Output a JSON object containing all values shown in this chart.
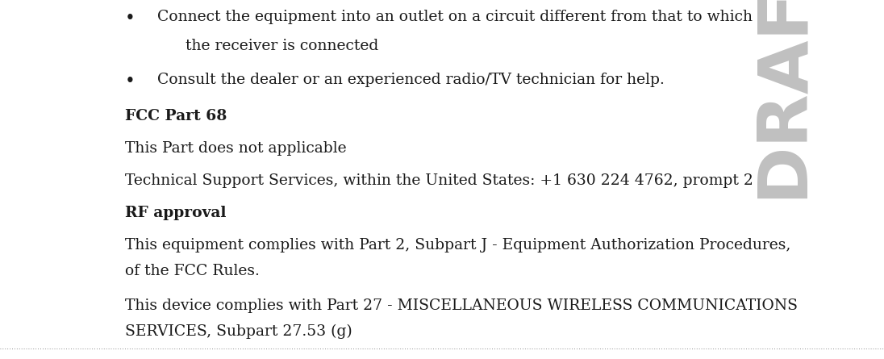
{
  "bg_color": "#ffffff",
  "text_color": "#1a1a1a",
  "draft_color": "#c0c0c0",
  "bullet_char": "•",
  "bullet1_line1": "Connect the equipment into an outlet on a circuit different from that to which",
  "bullet1_line2": "the receiver is connected",
  "bullet2": "Consult the dealer or an experienced radio/TV technician for help.",
  "heading1": "FCC Part 68",
  "para1": "This Part does not applicable",
  "para2": "Technical Support Services, within the United States: +1 630 224 4762, prompt 2",
  "heading2": "RF approval",
  "para3_line1": "This equipment complies with Part 2, Subpart J - Equipment Authorization Procedures,",
  "para3_line2": "of the FCC Rules.",
  "para4_line1": "This device complies with Part 27 - MISCELLANEOUS WIRELESS COMMUNICATIONS",
  "para4_line2": "SERVICES, Subpart 27.53 (g)",
  "draft_text": "DRAFT",
  "body_font_size": 13.5,
  "heading_font_size": 13.5,
  "draft_font_size": 62
}
